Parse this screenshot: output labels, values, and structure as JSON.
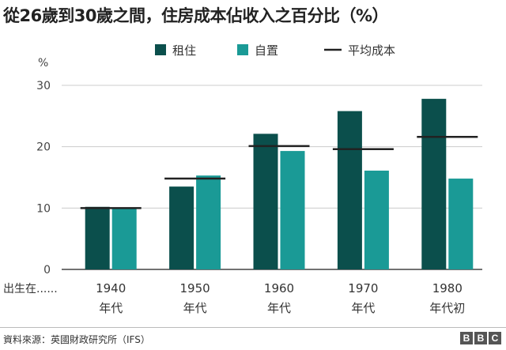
{
  "title": "從26歲到30歲之間，住房成本佔收入之百分比（%）",
  "source": "資料來源：英國財政研究所（IFS）",
  "logo": [
    "B",
    "B",
    "C"
  ],
  "colors": {
    "renting": "#0b4f4c",
    "owning": "#1a9a96",
    "average": "#222222",
    "axis": "#444444",
    "grid": "#cccccc"
  },
  "chart_data": {
    "type": "bar",
    "ylabel": "%",
    "xlabel": "出生在......",
    "ylim": [
      0,
      30
    ],
    "yticks": [
      0,
      10,
      20,
      30
    ],
    "grid": true,
    "legend_position": "top",
    "categories": [
      [
        "1940",
        "年代"
      ],
      [
        "1950",
        "年代"
      ],
      [
        "1960",
        "年代"
      ],
      [
        "1970",
        "年代"
      ],
      [
        "1980",
        "年代初"
      ]
    ],
    "series": [
      {
        "name": "租住",
        "values": [
          10.2,
          13.5,
          22.1,
          25.8,
          27.8
        ]
      },
      {
        "name": "自置",
        "values": [
          9.9,
          15.3,
          19.3,
          16.1,
          14.8
        ]
      }
    ],
    "average_series": {
      "name": "平均成本",
      "values": [
        10.0,
        14.8,
        20.1,
        19.6,
        21.6
      ]
    }
  }
}
